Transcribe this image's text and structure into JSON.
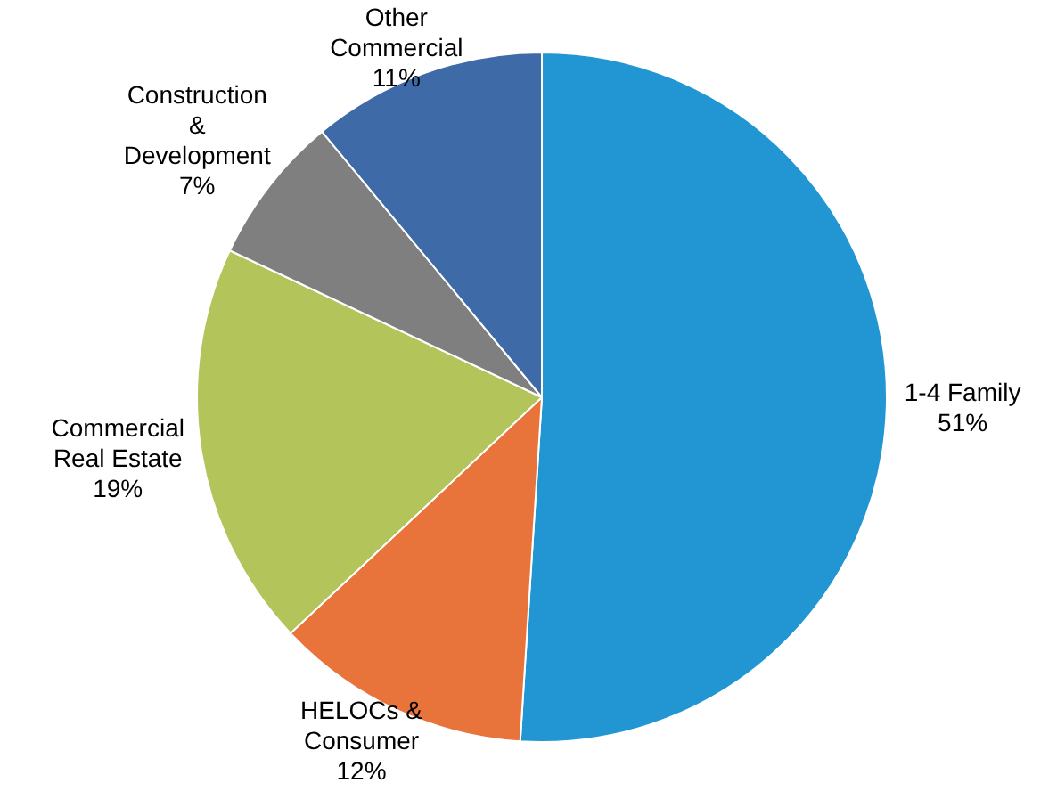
{
  "chart_data": {
    "type": "pie",
    "categories": [
      "1-4 Family",
      "HELOCs &\nConsumer",
      "Commercial\nReal Estate",
      "Construction\n&\nDevelopment",
      "Other\nCommercial"
    ],
    "values": [
      51,
      12,
      19,
      7,
      11
    ],
    "colors": [
      "#2196d3",
      "#e8743b",
      "#b3c45a",
      "#7f7f7f",
      "#3e6ba8"
    ],
    "value_labels": [
      "51%",
      "12%",
      "19%",
      "7%",
      "11%"
    ],
    "legend": false
  }
}
